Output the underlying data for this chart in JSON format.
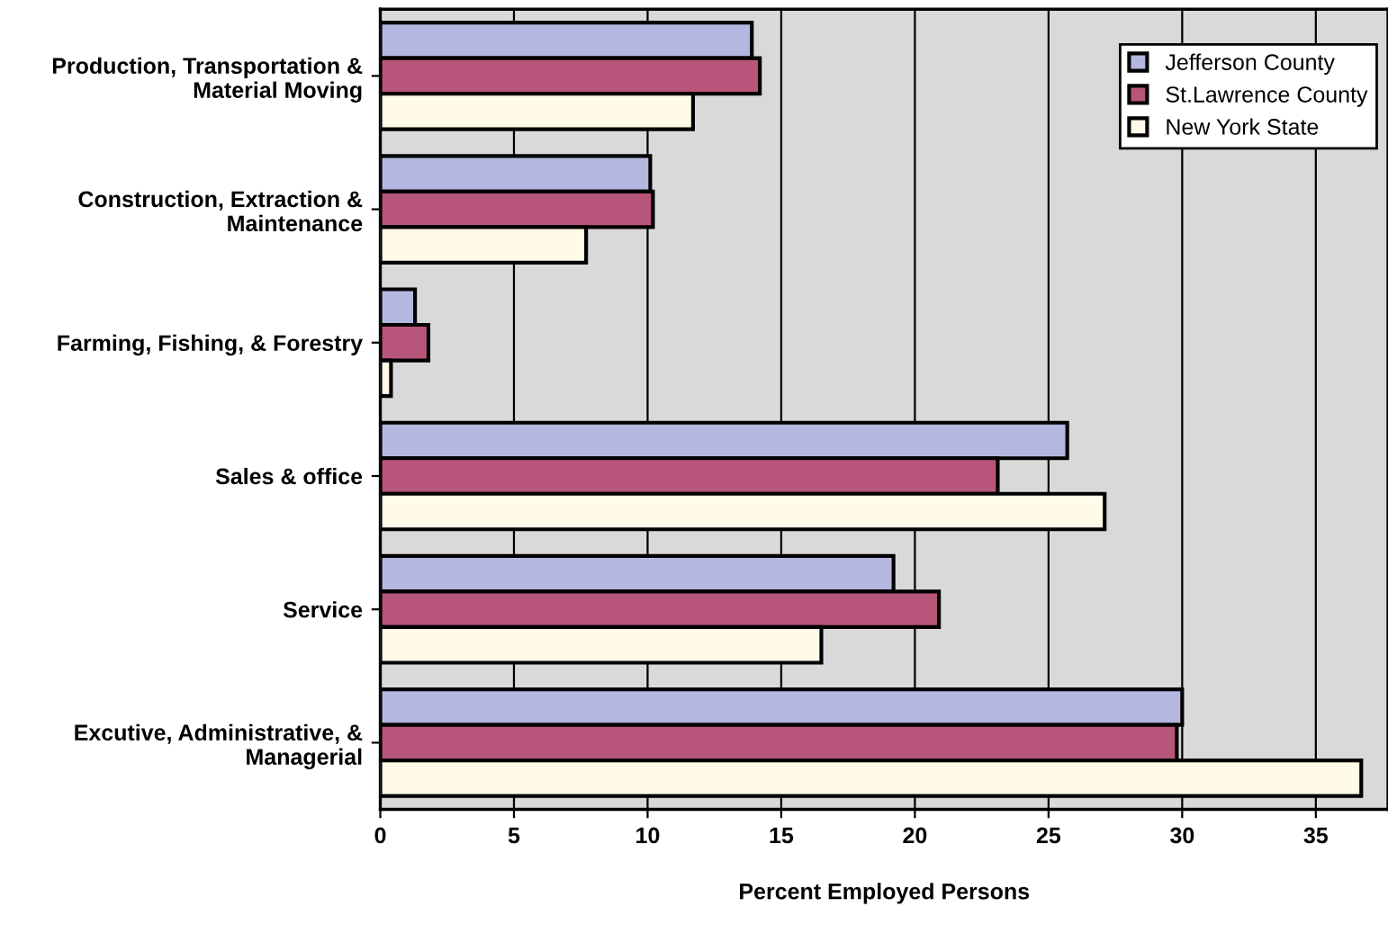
{
  "chart_data": {
    "type": "bar",
    "orientation": "horizontal",
    "categories": [
      "Production, Transportation &\nMaterial Moving",
      "Construction, Extraction &\nMaintenance",
      "Farming, Fishing, & Forestry",
      "Sales & office",
      "Service",
      "Excutive, Administrative, &\nManagerial"
    ],
    "series": [
      {
        "name": "Jefferson County",
        "color": "#b4b8e0",
        "values": [
          13.9,
          10.1,
          1.3,
          25.7,
          19.2,
          30.0
        ]
      },
      {
        "name": "St.Lawrence County",
        "color": "#b8557a",
        "values": [
          14.2,
          10.2,
          1.8,
          23.1,
          20.9,
          29.8
        ]
      },
      {
        "name": "New York State",
        "color": "#fffbe8",
        "values": [
          11.7,
          7.7,
          0.4,
          27.1,
          16.5,
          36.7
        ]
      }
    ],
    "xlabel": "Percent Employed Persons",
    "xlim": [
      0,
      37.7
    ],
    "xticks": [
      0,
      5,
      10,
      15,
      20,
      25,
      30,
      35
    ],
    "grid": "x",
    "legend": "top right"
  }
}
